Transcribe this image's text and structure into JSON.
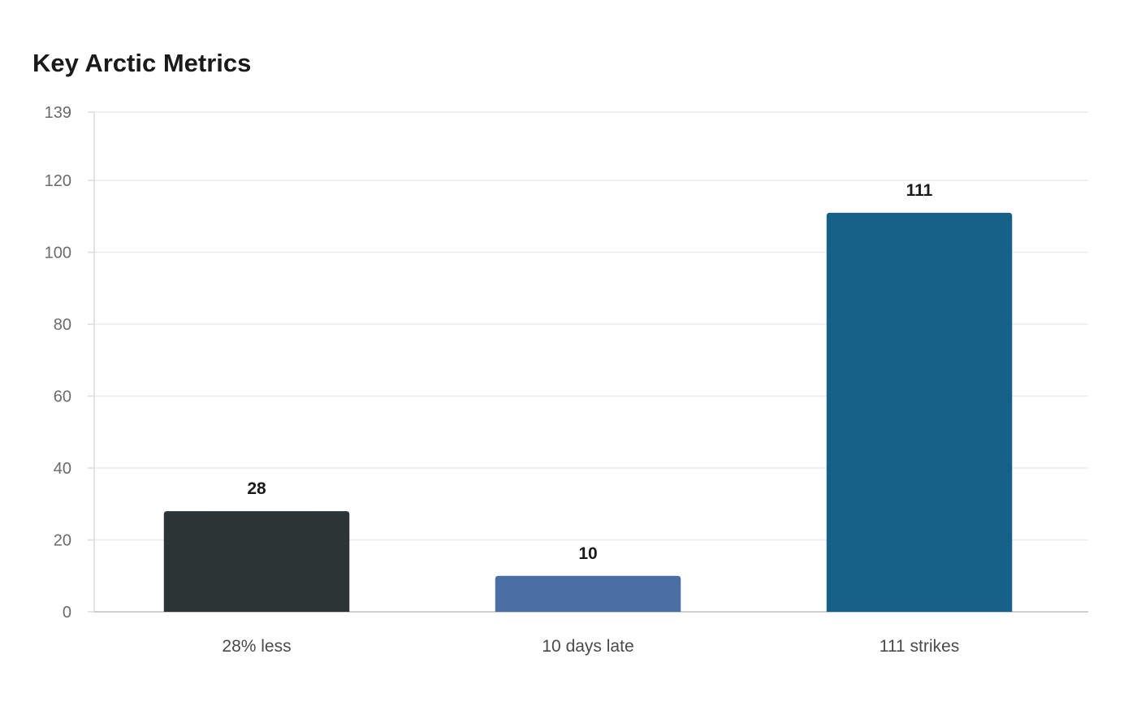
{
  "chart_data": {
    "type": "bar",
    "title": "Key Arctic Metrics",
    "categories": [
      "28% less",
      "10 days late",
      "111 strikes"
    ],
    "values": [
      28,
      10,
      111
    ],
    "value_labels": [
      "28",
      "10",
      "111"
    ],
    "colors": [
      "#2d3436",
      "#4a6fa5",
      "#176087"
    ],
    "ylim": [
      0,
      139
    ],
    "yticks": [
      0,
      20,
      40,
      60,
      80,
      100,
      120,
      139
    ],
    "ytick_labels": [
      "0",
      "20",
      "40",
      "60",
      "80",
      "100",
      "120",
      "139"
    ],
    "grid": true,
    "xlabel": "",
    "ylabel": ""
  }
}
